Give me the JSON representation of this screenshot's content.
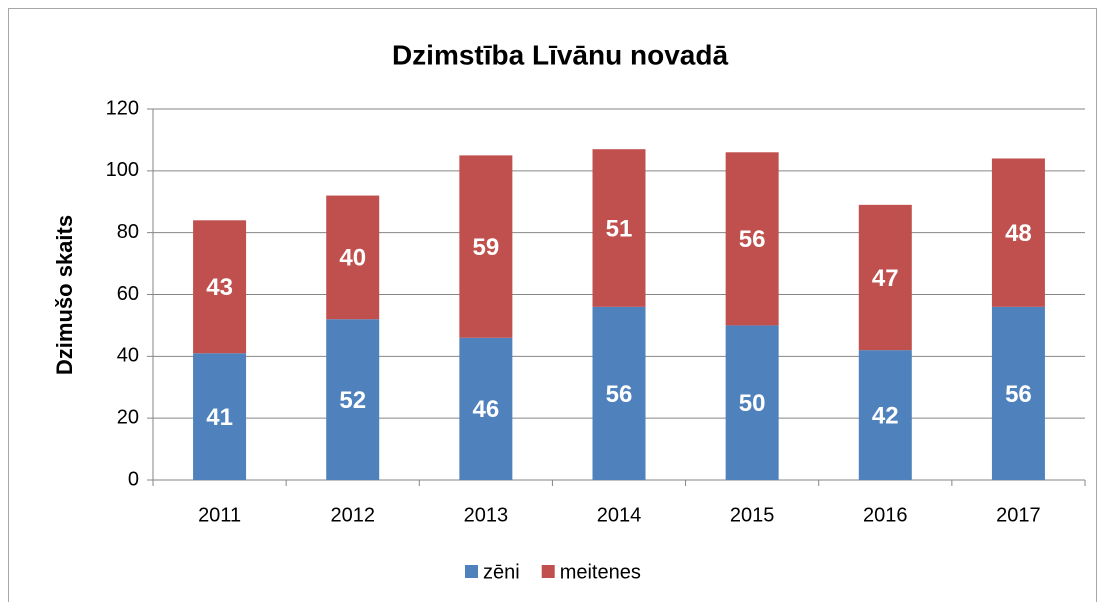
{
  "chart_data": {
    "type": "bar",
    "stacked": true,
    "title": "Dzimstība Līvānu novadā",
    "y_label": "Dzimušo skaits",
    "categories": [
      "2011",
      "2012",
      "2013",
      "2014",
      "2015",
      "2016",
      "2017"
    ],
    "series": [
      {
        "name": "zēni",
        "color": "#4f81bd",
        "values": [
          41,
          52,
          46,
          56,
          50,
          42,
          56
        ]
      },
      {
        "name": "meitenes",
        "color": "#c0504d",
        "values": [
          43,
          40,
          59,
          51,
          56,
          47,
          48
        ]
      }
    ],
    "ylim": [
      0,
      120
    ],
    "yticks": [
      0,
      20,
      40,
      60,
      80,
      100,
      120
    ],
    "grid": true,
    "legend": "bottom"
  }
}
